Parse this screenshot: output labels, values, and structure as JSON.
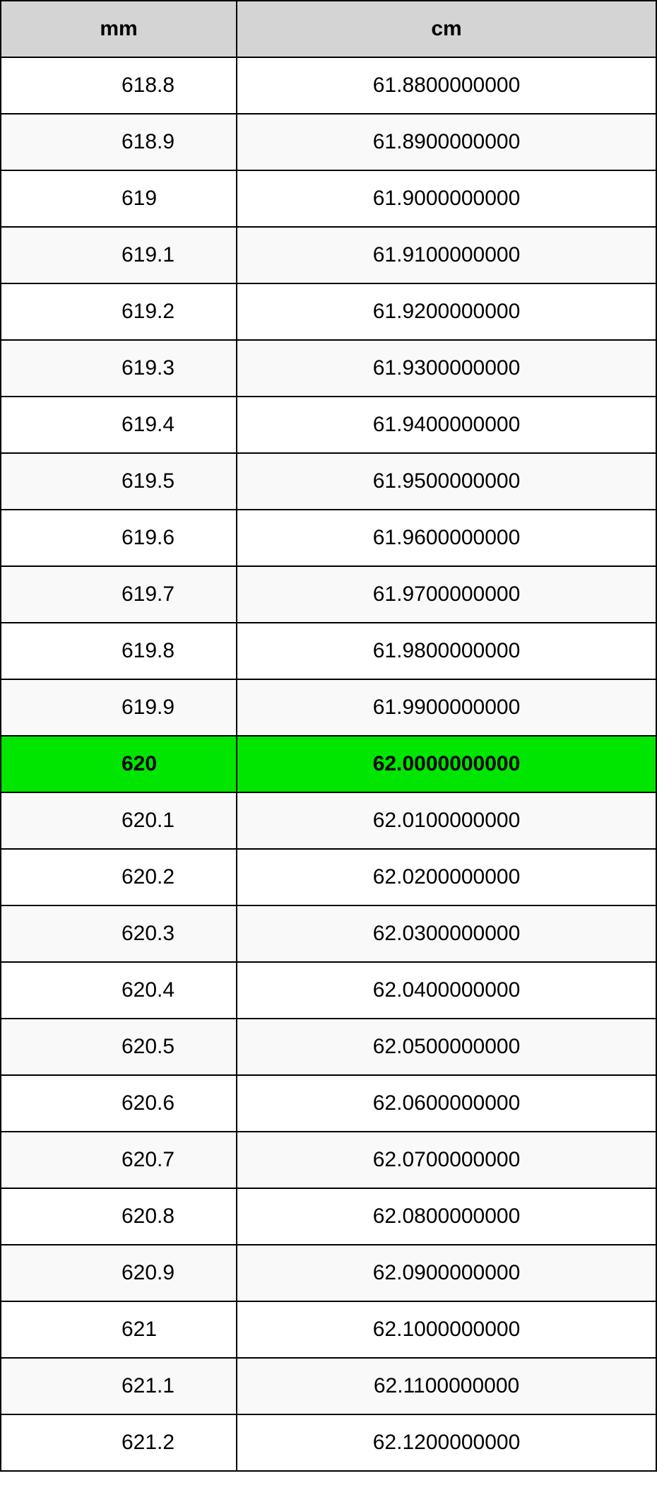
{
  "table": {
    "type": "table",
    "header_bg": "#d4d4d4",
    "row_alt_bg_even": "#ffffff",
    "row_alt_bg_odd": "#f9f9f9",
    "highlight_bg": "#00e600",
    "border_color": "#000000",
    "text_color": "#000000",
    "font_family": "Arial, Helvetica, sans-serif",
    "header_fontsize": 30,
    "cell_fontsize": 30,
    "col_widths": [
      "36%",
      "64%"
    ],
    "columns": [
      "mm",
      "cm"
    ],
    "rows": [
      {
        "mm": "618.8",
        "cm": "61.8800000000",
        "highlighted": false
      },
      {
        "mm": "618.9",
        "cm": "61.8900000000",
        "highlighted": false
      },
      {
        "mm": "619",
        "cm": "61.9000000000",
        "highlighted": false
      },
      {
        "mm": "619.1",
        "cm": "61.9100000000",
        "highlighted": false
      },
      {
        "mm": "619.2",
        "cm": "61.9200000000",
        "highlighted": false
      },
      {
        "mm": "619.3",
        "cm": "61.9300000000",
        "highlighted": false
      },
      {
        "mm": "619.4",
        "cm": "61.9400000000",
        "highlighted": false
      },
      {
        "mm": "619.5",
        "cm": "61.9500000000",
        "highlighted": false
      },
      {
        "mm": "619.6",
        "cm": "61.9600000000",
        "highlighted": false
      },
      {
        "mm": "619.7",
        "cm": "61.9700000000",
        "highlighted": false
      },
      {
        "mm": "619.8",
        "cm": "61.9800000000",
        "highlighted": false
      },
      {
        "mm": "619.9",
        "cm": "61.9900000000",
        "highlighted": false
      },
      {
        "mm": "620",
        "cm": "62.0000000000",
        "highlighted": true
      },
      {
        "mm": "620.1",
        "cm": "62.0100000000",
        "highlighted": false
      },
      {
        "mm": "620.2",
        "cm": "62.0200000000",
        "highlighted": false
      },
      {
        "mm": "620.3",
        "cm": "62.0300000000",
        "highlighted": false
      },
      {
        "mm": "620.4",
        "cm": "62.0400000000",
        "highlighted": false
      },
      {
        "mm": "620.5",
        "cm": "62.0500000000",
        "highlighted": false
      },
      {
        "mm": "620.6",
        "cm": "62.0600000000",
        "highlighted": false
      },
      {
        "mm": "620.7",
        "cm": "62.0700000000",
        "highlighted": false
      },
      {
        "mm": "620.8",
        "cm": "62.0800000000",
        "highlighted": false
      },
      {
        "mm": "620.9",
        "cm": "62.0900000000",
        "highlighted": false
      },
      {
        "mm": "621",
        "cm": "62.1000000000",
        "highlighted": false
      },
      {
        "mm": "621.1",
        "cm": "62.1100000000",
        "highlighted": false
      },
      {
        "mm": "621.2",
        "cm": "62.1200000000",
        "highlighted": false
      }
    ]
  }
}
